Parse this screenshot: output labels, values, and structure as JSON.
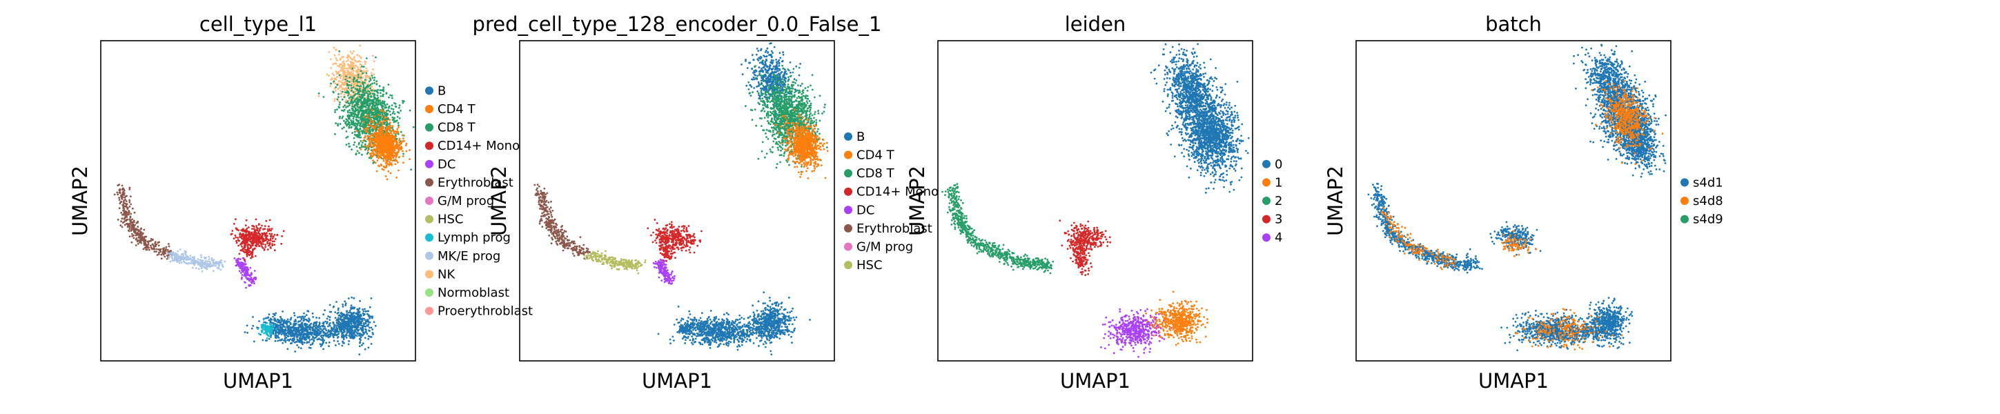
{
  "chart_data": [
    {
      "type": "scatter",
      "title": "cell_type_l1",
      "xlabel": "UMAP1",
      "ylabel": "UMAP2",
      "grid": false,
      "legend_position": "right",
      "legend": [
        {
          "name": "B",
          "color": "#1f77b4"
        },
        {
          "name": "CD4 T",
          "color": "#ff7f0e"
        },
        {
          "name": "CD8 T",
          "color": "#279e68"
        },
        {
          "name": "CD14+ Mono",
          "color": "#d62728"
        },
        {
          "name": "DC",
          "color": "#aa40fc"
        },
        {
          "name": "Erythroblast",
          "color": "#8c564b"
        },
        {
          "name": "G/M prog",
          "color": "#e377c2"
        },
        {
          "name": "HSC",
          "color": "#b5bd61"
        },
        {
          "name": "Lymph prog",
          "color": "#17becf"
        },
        {
          "name": "MK/E prog",
          "color": "#aec7e8"
        },
        {
          "name": "NK",
          "color": "#ffbb78"
        },
        {
          "name": "Normoblast",
          "color": "#98df8a"
        },
        {
          "name": "Proerythroblast",
          "color": "#ff9896"
        }
      ]
    },
    {
      "type": "scatter",
      "title": "pred_cell_type_128_encoder_0.0_False_1",
      "xlabel": "UMAP1",
      "ylabel": "UMAP2",
      "grid": false,
      "legend_position": "right",
      "legend": [
        {
          "name": "B",
          "color": "#1f77b4"
        },
        {
          "name": "CD4 T",
          "color": "#ff7f0e"
        },
        {
          "name": "CD8 T",
          "color": "#279e68"
        },
        {
          "name": "CD14+ Mono",
          "color": "#d62728"
        },
        {
          "name": "DC",
          "color": "#aa40fc"
        },
        {
          "name": "Erythroblast",
          "color": "#8c564b"
        },
        {
          "name": "G/M prog",
          "color": "#e377c2"
        },
        {
          "name": "HSC",
          "color": "#b5bd61"
        }
      ]
    },
    {
      "type": "scatter",
      "title": "leiden",
      "xlabel": "UMAP1",
      "ylabel": "UMAP2",
      "grid": false,
      "legend_position": "right",
      "legend": [
        {
          "name": "0",
          "color": "#1f77b4"
        },
        {
          "name": "1",
          "color": "#ff7f0e"
        },
        {
          "name": "2",
          "color": "#279e68"
        },
        {
          "name": "3",
          "color": "#d62728"
        },
        {
          "name": "4",
          "color": "#aa40fc"
        }
      ]
    },
    {
      "type": "scatter",
      "title": "batch",
      "xlabel": "UMAP1",
      "ylabel": "UMAP2",
      "grid": false,
      "legend_position": "right",
      "legend": [
        {
          "name": "s4d1",
          "color": "#1f77b4"
        },
        {
          "name": "s4d8",
          "color": "#ff7f0e"
        },
        {
          "name": "s4d9",
          "color": "#279e68"
        }
      ]
    }
  ]
}
